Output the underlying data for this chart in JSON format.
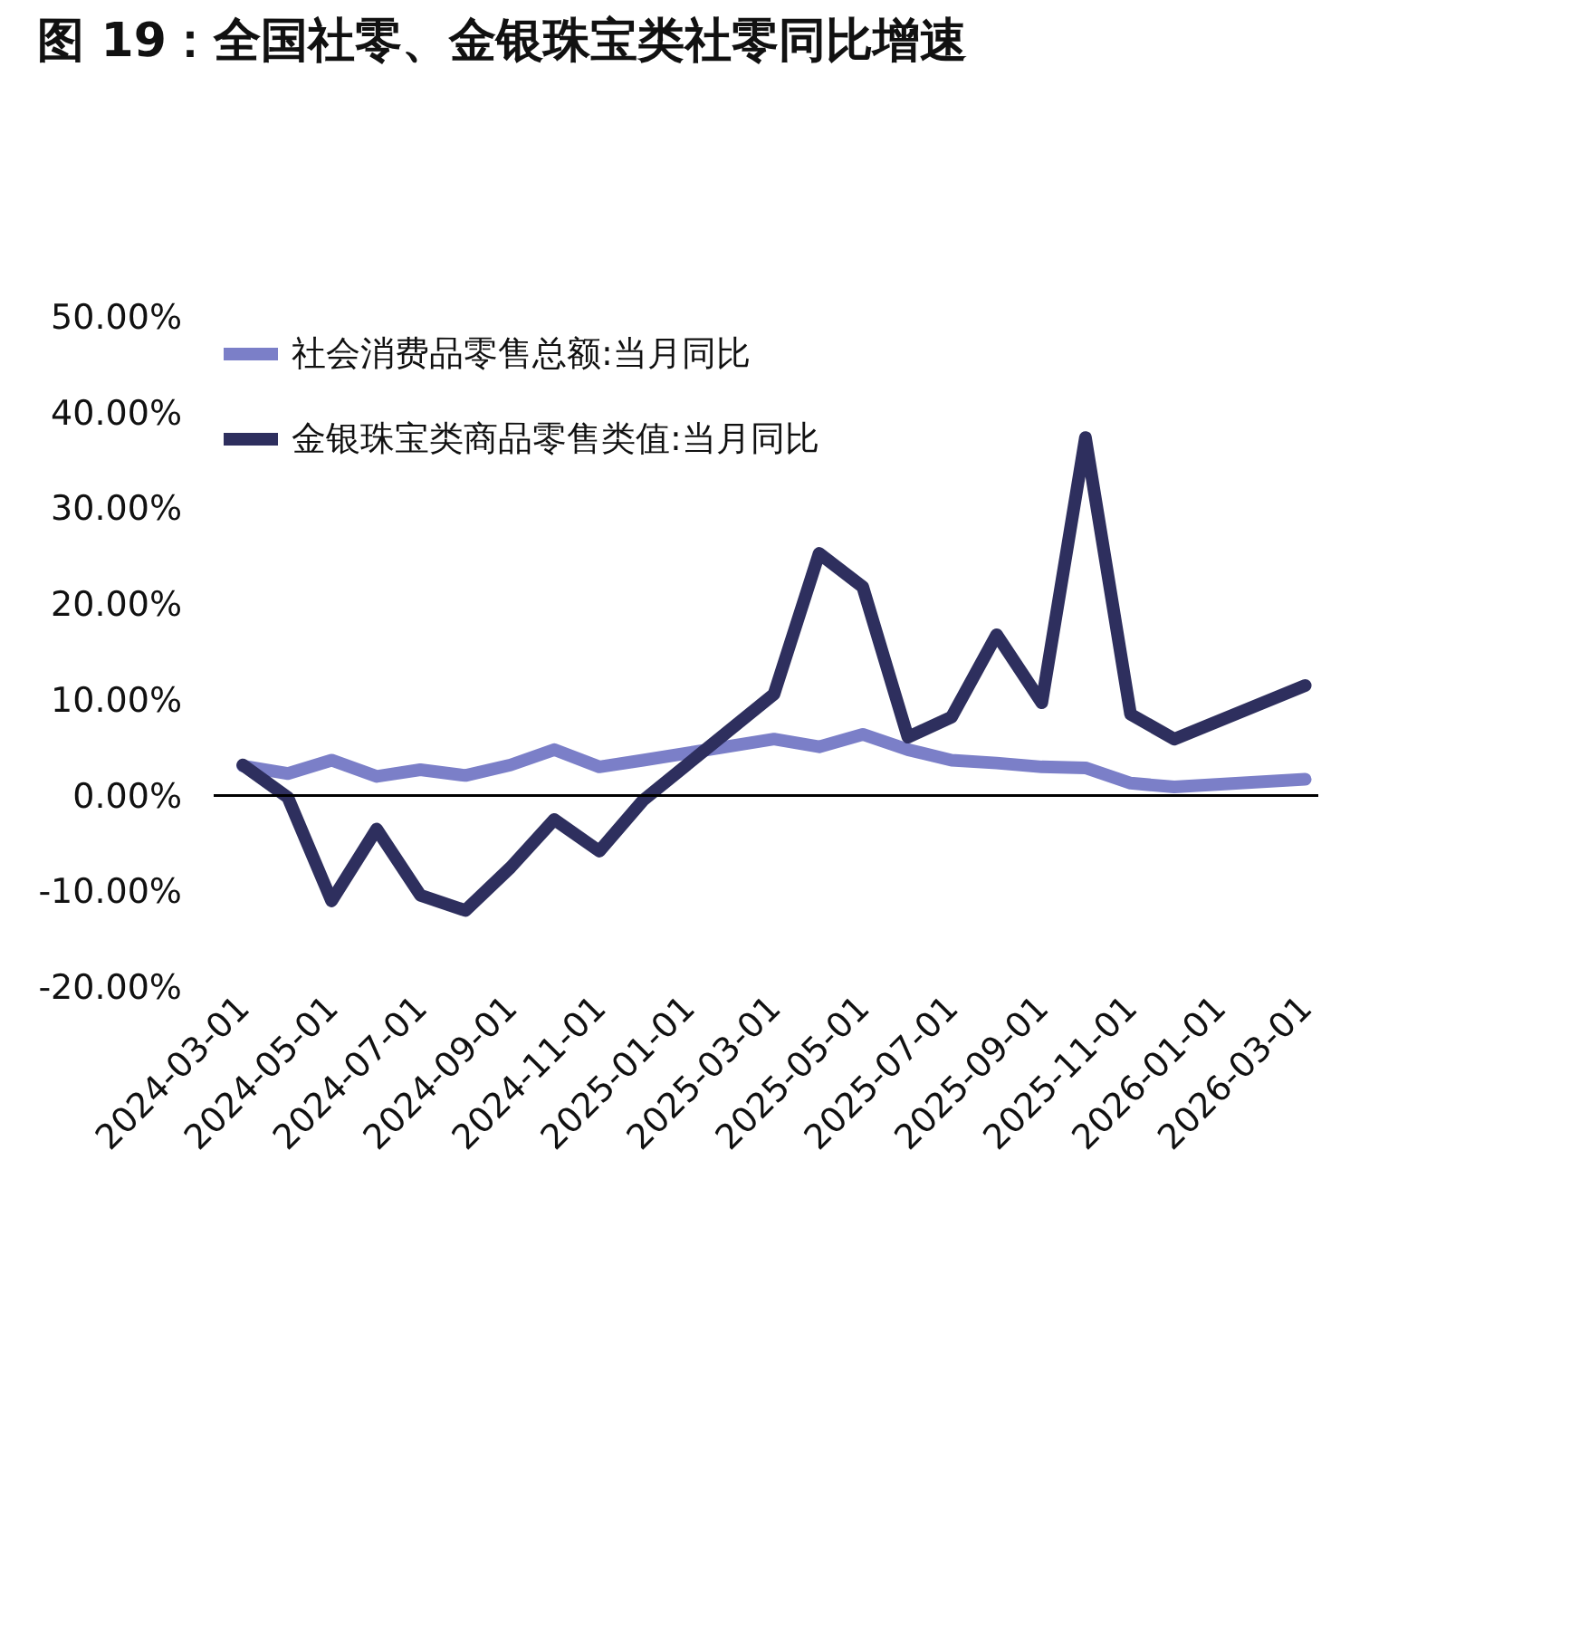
{
  "chart_data": {
    "type": "line",
    "title": "图 19：全国社零、金银珠宝类社零同比增速",
    "x": [
      "2024-03",
      "2024-04",
      "2024-05",
      "2024-06",
      "2024-07",
      "2024-08",
      "2024-09",
      "2024-10",
      "2024-11",
      "2024-12",
      "2025-03",
      "2025-04",
      "2025-05",
      "2025-06",
      "2025-07",
      "2025-08",
      "2025-09",
      "2025-10",
      "2025-11",
      "2025-12",
      "2026-03"
    ],
    "series": [
      {
        "name": "社会消费品零售总额:当月同比",
        "color": "#7b7fc8",
        "values": [
          3.1,
          2.3,
          3.7,
          2.0,
          2.7,
          2.1,
          3.2,
          4.8,
          3.0,
          3.7,
          5.9,
          5.1,
          6.4,
          4.8,
          3.7,
          3.4,
          3.0,
          2.9,
          1.3,
          0.9,
          1.7
        ]
      },
      {
        "name": "金银珠宝类商品零售类值:当月同比",
        "color": "#2e2f5e",
        "values": [
          3.2,
          -0.2,
          -11.0,
          -3.5,
          -10.4,
          -12.0,
          -7.5,
          -2.5,
          -5.8,
          -0.5,
          10.6,
          25.3,
          21.8,
          6.1,
          8.2,
          16.8,
          9.7,
          37.4,
          8.5,
          5.9,
          11.5
        ]
      }
    ],
    "xlim": [
      "2024-02-10",
      "2026-03-10"
    ],
    "xticks": [
      "2024-03-01",
      "2024-05-01",
      "2024-07-01",
      "2024-09-01",
      "2024-11-01",
      "2025-01-01",
      "2025-03-01",
      "2025-05-01",
      "2025-07-01",
      "2025-09-01",
      "2025-11-01",
      "2026-01-01",
      "2026-03-01"
    ],
    "ylim": [
      -20,
      50
    ],
    "yticks": [
      {
        "value": -20,
        "label": "-20.00%"
      },
      {
        "value": -10,
        "label": "-10.00%"
      },
      {
        "value": 0,
        "label": "0.00%"
      },
      {
        "value": 10,
        "label": "10.00%"
      },
      {
        "value": 20,
        "label": "20.00%"
      },
      {
        "value": 30,
        "label": "30.00%"
      },
      {
        "value": 40,
        "label": "40.00%"
      },
      {
        "value": 50,
        "label": "50.00%"
      }
    ],
    "ref_lines": [
      {
        "axis": "y",
        "value": 0,
        "color": "#000000"
      }
    ],
    "grid": false,
    "legend": "top left",
    "marker": "none",
    "line_style": "solid"
  }
}
